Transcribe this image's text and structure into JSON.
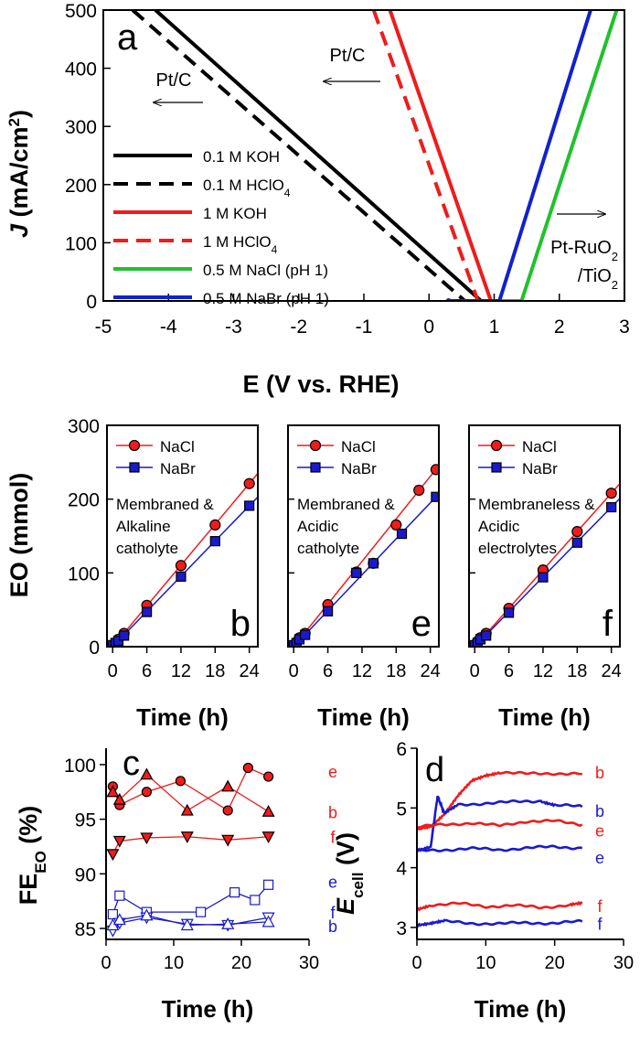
{
  "chart_data": [
    {
      "panel": "a",
      "type": "line",
      "xlabel": "E (V vs. RHE)",
      "ylabel_main": "J",
      "ylabel_unit": "(mA/cm",
      "ylabel_sup": "2",
      "ylabel_close": ")",
      "xlim": [
        -5,
        3
      ],
      "ylim": [
        0,
        500
      ],
      "xticks": [
        "-5",
        "-4",
        "-3",
        "-2",
        "-1",
        "0",
        "1",
        "2",
        "3"
      ],
      "yticks": [
        "0",
        "100",
        "200",
        "300",
        "400",
        "500"
      ],
      "annotations": {
        "pt_c_left": "Pt/C",
        "pt_c_right": "Pt/C",
        "anode_line1": "Pt-RuO",
        "anode_line1_sub": "2",
        "anode_line2": "/TiO",
        "anode_line2_sub": "2"
      },
      "legend_placement": "center-left",
      "series": [
        {
          "name": "0.1 M KOH",
          "legend": "0.1 M KOH",
          "legend_sub": "",
          "color": "#000000",
          "dash": false,
          "points": [
            [
              -4.2,
              500
            ],
            [
              0.8,
              0
            ],
            [
              1.0,
              0
            ]
          ]
        },
        {
          "name": "0.1 M HClO4",
          "legend": "0.1 M HClO",
          "legend_sub": "4",
          "color": "#000000",
          "dash": true,
          "points": [
            [
              -4.55,
              500
            ],
            [
              0.55,
              0
            ],
            [
              1.0,
              0
            ]
          ]
        },
        {
          "name": "1 M KOH",
          "legend": "1 M KOH",
          "legend_sub": "",
          "color": "#ee1c1c",
          "dash": false,
          "points": [
            [
              -0.6,
              500
            ],
            [
              0.95,
              0
            ],
            [
              1.05,
              0
            ]
          ]
        },
        {
          "name": "1 M HClO4",
          "legend": "1 M HClO",
          "legend_sub": "4",
          "color": "#ee1c1c",
          "dash": true,
          "points": [
            [
              -0.85,
              500
            ],
            [
              0.75,
              0
            ],
            [
              1.0,
              0
            ]
          ]
        },
        {
          "name": "0.5 M NaCl (pH 1)",
          "legend": "0.5 M NaCl (pH 1)",
          "legend_sub": "",
          "color": "#22c02e",
          "dash": false,
          "points": [
            [
              0.95,
              0
            ],
            [
              1.42,
              0
            ],
            [
              2.88,
              500
            ]
          ]
        },
        {
          "name": "0.5 M NaBr (pH 1)",
          "legend": "0.5 M NaBr (pH 1)",
          "legend_sub": "",
          "color": "#1122cc",
          "dash": false,
          "points": [
            [
              0.3,
              0
            ],
            [
              1.0,
              0
            ],
            [
              1.08,
              0
            ],
            [
              2.48,
              500
            ]
          ]
        }
      ]
    },
    {
      "panel": "b",
      "type": "line",
      "ylabel": "EO (mmol)",
      "xlabel": "Time (h)",
      "xlim": [
        -1,
        25.5
      ],
      "ylim": [
        0,
        300
      ],
      "xticks": [
        "0",
        "6",
        "12",
        "18",
        "24"
      ],
      "yticks": [
        "0",
        "100",
        "200",
        "300"
      ],
      "label_lines": [
        "Membraned &",
        "Alkaline",
        "catholyte"
      ],
      "legend": [
        "NaCl",
        "NaBr"
      ],
      "series": [
        {
          "name": "NaCl",
          "color": "#ee1c1c",
          "x": [
            0,
            0.5,
            1,
            2,
            6,
            12,
            18,
            24
          ],
          "y": [
            2,
            5,
            10,
            18,
            56,
            110,
            165,
            221
          ]
        },
        {
          "name": "NaBr",
          "color": "#1a1acc",
          "x": [
            0,
            0.5,
            1,
            2,
            6,
            12,
            18,
            24
          ],
          "y": [
            2,
            5,
            8,
            15,
            47,
            95,
            143,
            191
          ]
        }
      ]
    },
    {
      "panel": "e",
      "type": "line",
      "xlabel": "Time (h)",
      "xlim": [
        -1,
        25.5
      ],
      "ylim": [
        0,
        300
      ],
      "xticks": [
        "0",
        "6",
        "12",
        "18",
        "24"
      ],
      "label_lines": [
        "Membraned &",
        "Acidic",
        "catholyte"
      ],
      "legend": [
        "NaCl",
        "NaBr"
      ],
      "series": [
        {
          "name": "NaCl",
          "color": "#ee1c1c",
          "x": [
            0,
            0.5,
            1,
            2,
            6,
            11,
            14,
            18,
            22,
            25
          ],
          "y": [
            2,
            6,
            12,
            18,
            57,
            101,
            113,
            165,
            212,
            240
          ]
        },
        {
          "name": "NaBr",
          "color": "#1a1acc",
          "x": [
            0,
            0.5,
            1,
            2,
            6,
            11,
            14,
            19,
            25
          ],
          "y": [
            2,
            5,
            10,
            16,
            48,
            100,
            113,
            153,
            203
          ]
        }
      ]
    },
    {
      "panel": "f",
      "type": "line",
      "xlabel": "Time (h)",
      "xlim": [
        -1,
        25.5
      ],
      "ylim": [
        0,
        300
      ],
      "xticks": [
        "0",
        "6",
        "12",
        "18",
        "24"
      ],
      "label_lines": [
        "Membraneless &",
        "Acidic",
        "electrolytes"
      ],
      "legend": [
        "NaCl",
        "NaBr"
      ],
      "series": [
        {
          "name": "NaCl",
          "color": "#ee1c1c",
          "x": [
            0,
            0.5,
            1,
            2,
            6,
            12,
            18,
            24
          ],
          "y": [
            2,
            7,
            12,
            18,
            52,
            104,
            156,
            208
          ]
        },
        {
          "name": "NaBr",
          "color": "#1a1acc",
          "x": [
            0,
            0.5,
            1,
            2,
            6,
            12,
            18,
            24
          ],
          "y": [
            2,
            5,
            10,
            15,
            46,
            94,
            141,
            189
          ]
        }
      ]
    },
    {
      "panel": "c",
      "type": "line",
      "ylabel_main": "FE",
      "ylabel_sub": "EO",
      "ylabel_unit": " (%)",
      "xlabel": "Time (h)",
      "xlim": [
        0,
        30
      ],
      "ylim": [
        84,
        101.5
      ],
      "xticks": [
        "0",
        "10",
        "20",
        "30"
      ],
      "yticks": [
        "85",
        "90",
        "95",
        "100"
      ],
      "series": [
        {
          "name": "e",
          "color": "#ee1c1c",
          "marker": "circle-filled",
          "x": [
            1,
            2,
            6,
            11,
            18,
            21,
            24
          ],
          "y": [
            98,
            96.3,
            97.5,
            98.5,
            95.8,
            99.7,
            98.9
          ]
        },
        {
          "name": "b",
          "color": "#ee1c1c",
          "marker": "triangle-up-filled",
          "x": [
            1,
            2,
            6,
            12,
            18,
            24
          ],
          "y": [
            97.5,
            96.8,
            99.1,
            95.8,
            98,
            95.7
          ]
        },
        {
          "name": "f",
          "color": "#ee1c1c",
          "marker": "triangle-down-filled",
          "x": [
            1,
            2,
            6,
            12,
            18,
            24
          ],
          "y": [
            91.8,
            93,
            93.3,
            93.4,
            93.1,
            93.4
          ]
        },
        {
          "name": "e",
          "color": "#1a1acc",
          "marker": "square-open",
          "x": [
            1,
            2,
            6,
            14,
            19,
            22,
            24
          ],
          "y": [
            86.3,
            88,
            86.5,
            86.5,
            88.3,
            87.6,
            89
          ]
        },
        {
          "name": "f",
          "color": "#1a1acc",
          "marker": "triangle-down-open",
          "x": [
            1,
            2,
            6,
            12,
            18,
            24
          ],
          "y": [
            84.8,
            85.5,
            86,
            85.4,
            85.3,
            86
          ]
        },
        {
          "name": "b",
          "color": "#1a1acc",
          "marker": "triangle-up-open",
          "x": [
            1,
            2,
            6,
            12,
            18,
            24
          ],
          "y": [
            85.3,
            85.8,
            86.2,
            85.3,
            85.4,
            85.6
          ]
        }
      ]
    },
    {
      "panel": "d",
      "type": "line",
      "ylabel_main": "E",
      "ylabel_sub": "cell",
      "ylabel_unit": " (V)",
      "xlabel": "Time (h)",
      "xlim": [
        0,
        30
      ],
      "ylim": [
        2.8,
        6
      ],
      "xticks": [
        "0",
        "10",
        "20",
        "30"
      ],
      "yticks": [
        "3",
        "4",
        "5",
        "6"
      ],
      "series": [
        {
          "name": "b",
          "color": "#ee1c1c",
          "x": [
            0,
            2,
            4,
            6,
            8,
            10,
            12,
            16,
            20,
            24
          ],
          "y": [
            4.65,
            4.7,
            4.9,
            5.2,
            5.45,
            5.55,
            5.6,
            5.57,
            5.58,
            5.57
          ]
        },
        {
          "name": "b",
          "color": "#1a1acc",
          "x": [
            0,
            2,
            3,
            4,
            6,
            10,
            14,
            18,
            20,
            24
          ],
          "y": [
            4.3,
            4.35,
            5.2,
            4.9,
            5.05,
            5.08,
            5.1,
            5.12,
            5.05,
            5.02
          ]
        },
        {
          "name": "e",
          "color": "#ee1c1c",
          "x": [
            0,
            4,
            8,
            12,
            16,
            20,
            24
          ],
          "y": [
            4.68,
            4.72,
            4.75,
            4.7,
            4.78,
            4.78,
            4.72
          ]
        },
        {
          "name": "e",
          "color": "#1a1acc",
          "x": [
            0,
            4,
            8,
            12,
            16,
            20,
            24
          ],
          "y": [
            4.28,
            4.3,
            4.32,
            4.3,
            4.33,
            4.35,
            4.33
          ]
        },
        {
          "name": "f",
          "color": "#ee1c1c",
          "x": [
            0,
            2,
            6,
            10,
            14,
            18,
            22,
            24
          ],
          "y": [
            3.3,
            3.38,
            3.4,
            3.35,
            3.37,
            3.33,
            3.38,
            3.4
          ]
        },
        {
          "name": "f",
          "color": "#1a1acc",
          "x": [
            0,
            2,
            4,
            8,
            12,
            16,
            20,
            24
          ],
          "y": [
            3.05,
            3.07,
            3.1,
            3.07,
            3.06,
            3.08,
            3.07,
            3.1
          ]
        }
      ]
    }
  ]
}
